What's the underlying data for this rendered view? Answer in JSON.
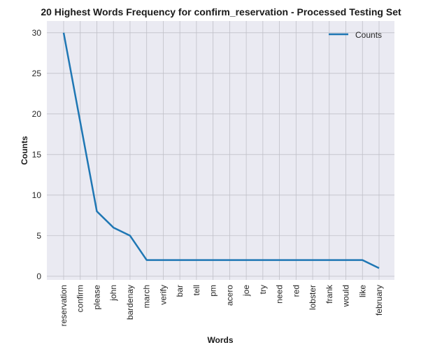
{
  "chart_data": {
    "type": "line",
    "title": "20 Highest Words Frequency for confirm_reservation - Processed Testing Set",
    "xlabel": "Words",
    "ylabel": "Counts",
    "categories": [
      "reservation",
      "confirm",
      "please",
      "john",
      "bardenay",
      "march",
      "verify",
      "bar",
      "tell",
      "pm",
      "acero",
      "joe",
      "try",
      "need",
      "red",
      "lobster",
      "frank",
      "would",
      "like",
      "february"
    ],
    "series": [
      {
        "name": "Counts",
        "values": [
          30,
          19,
          8,
          6,
          5,
          2,
          2,
          2,
          2,
          2,
          2,
          2,
          2,
          2,
          2,
          2,
          2,
          2,
          2,
          1
        ]
      }
    ],
    "ylim": [
      -0.45,
      31.45
    ],
    "yticks": [
      0,
      5,
      10,
      15,
      20,
      25,
      30
    ],
    "grid": true,
    "legend_position": "top-right",
    "colors": {
      "line": "#1f77b4",
      "plot_background": "#eaeaf2",
      "grid": "#c0c0c8"
    }
  }
}
